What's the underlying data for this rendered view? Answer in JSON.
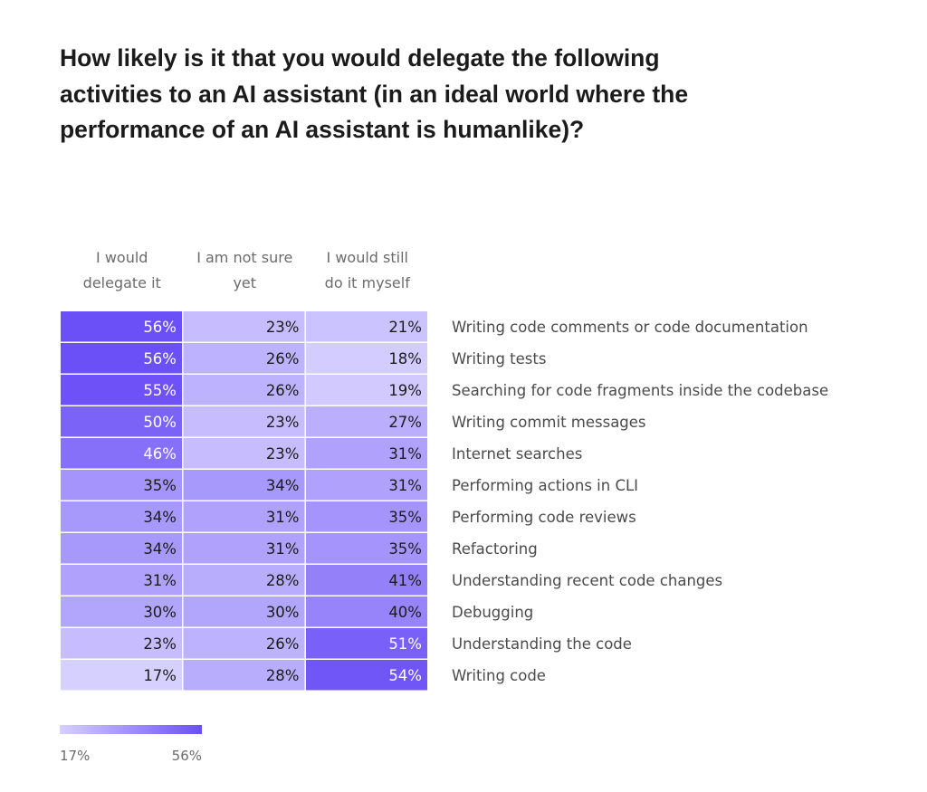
{
  "chart_data": {
    "type": "heatmap",
    "title": "How likely is it that you would delegate the following activities to an AI assistant (in an ideal world where the performance of an AI assistant is humanlike)?",
    "columns": [
      {
        "name": "delegate",
        "label_lines": [
          "I would",
          "delegate it"
        ]
      },
      {
        "name": "not-sure",
        "label_lines": [
          "I am not sure",
          "yet"
        ]
      },
      {
        "name": "myself",
        "label_lines": [
          "I would still",
          "do it myself"
        ]
      }
    ],
    "rows": [
      {
        "label": "Writing code comments or code documentation",
        "values": [
          56,
          23,
          21
        ]
      },
      {
        "label": "Writing tests",
        "values": [
          56,
          26,
          18
        ]
      },
      {
        "label": "Searching for code fragments inside the codebase",
        "values": [
          55,
          26,
          19
        ]
      },
      {
        "label": "Writing commit messages",
        "values": [
          50,
          23,
          27
        ]
      },
      {
        "label": "Internet searches",
        "values": [
          46,
          23,
          31
        ]
      },
      {
        "label": "Performing actions in CLI",
        "values": [
          35,
          34,
          31
        ]
      },
      {
        "label": "Performing code reviews",
        "values": [
          34,
          31,
          35
        ]
      },
      {
        "label": "Refactoring",
        "values": [
          34,
          31,
          35
        ]
      },
      {
        "label": "Understanding recent code changes",
        "values": [
          31,
          28,
          41
        ]
      },
      {
        "label": "Debugging",
        "values": [
          30,
          30,
          40
        ]
      },
      {
        "label": "Understanding the code",
        "values": [
          23,
          26,
          51
        ]
      },
      {
        "label": "Writing code",
        "values": [
          17,
          28,
          54
        ]
      }
    ],
    "value_suffix": "%",
    "color_scale": {
      "min": 17,
      "max": 56,
      "min_color": "#d6d0ff",
      "max_color": "#6b4ff7",
      "min_label": "17%",
      "max_label": "56%"
    }
  }
}
